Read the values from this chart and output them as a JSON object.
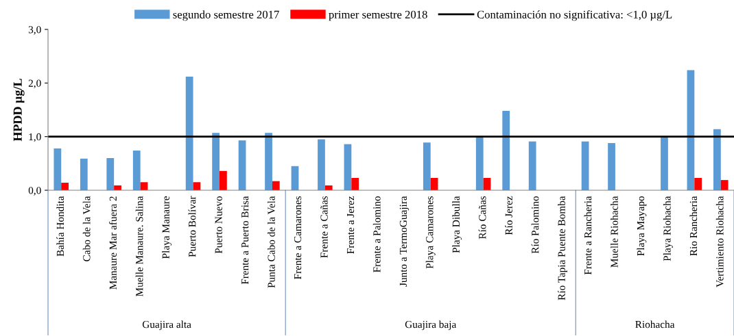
{
  "chart_data": {
    "type": "bar",
    "ylabel": "HPDD µg/L",
    "categories": [
      "Bahía Hondita",
      "Cabo de la Vela",
      "Manaure Mar afuera 2",
      "Muelle Manaure. Salina",
      "Playa Manaure",
      "Puerto Bolívar",
      "Puerto Nuevo",
      "Frente a Puerto Brisa",
      "Punta Cabo de la Vela",
      "Frente a Camarones",
      "Frente a Cañas",
      "Frente a Jerez",
      "Frente a Palomino",
      "Junto a TermoGuajira",
      "Playa Camarones",
      "Playa Dibulla",
      "Río Cañas",
      "Río Jerez",
      "Río Palomino",
      "Río Tapia Puente Bomba",
      "Frente a Rancheria",
      "Muelle Riohacha",
      "Playa Mayapo",
      "Playa Riohacha",
      "Rio Rancheria",
      "Vertimiento Riohacha"
    ],
    "series": [
      {
        "name": "segundo semestre 2017",
        "color": "#5b9bd5",
        "values": [
          0.78,
          0.59,
          0.6,
          0.74,
          null,
          2.12,
          1.07,
          0.93,
          1.07,
          0.45,
          0.95,
          0.86,
          null,
          null,
          0.89,
          null,
          1.0,
          1.48,
          0.91,
          null,
          0.91,
          0.88,
          null,
          1.0,
          2.24,
          1.14
        ]
      },
      {
        "name": "primer semestre 2018",
        "color": "#ff0000",
        "values": [
          0.14,
          null,
          0.09,
          0.15,
          null,
          0.15,
          0.36,
          null,
          0.17,
          null,
          0.09,
          0.23,
          null,
          null,
          0.23,
          null,
          0.23,
          null,
          null,
          null,
          null,
          null,
          null,
          null,
          0.23,
          0.19
        ]
      }
    ],
    "ref_lines": [
      {
        "axis": "y",
        "value": 1.0,
        "label": "Contaminación no significativa: <1,0 µg/L",
        "color": "#000000",
        "line_style": "solid"
      }
    ],
    "ylim": [
      0,
      3
    ],
    "yticks": [
      {
        "value": 0,
        "label": "0,0"
      },
      {
        "value": 1,
        "label": "1,0"
      },
      {
        "value": 2,
        "label": "2,0"
      },
      {
        "value": 3,
        "label": "3,0"
      }
    ],
    "annotations": [
      "Guajira alta",
      "Guajira baja",
      "Riohacha"
    ],
    "grid": false,
    "legend": "top"
  }
}
